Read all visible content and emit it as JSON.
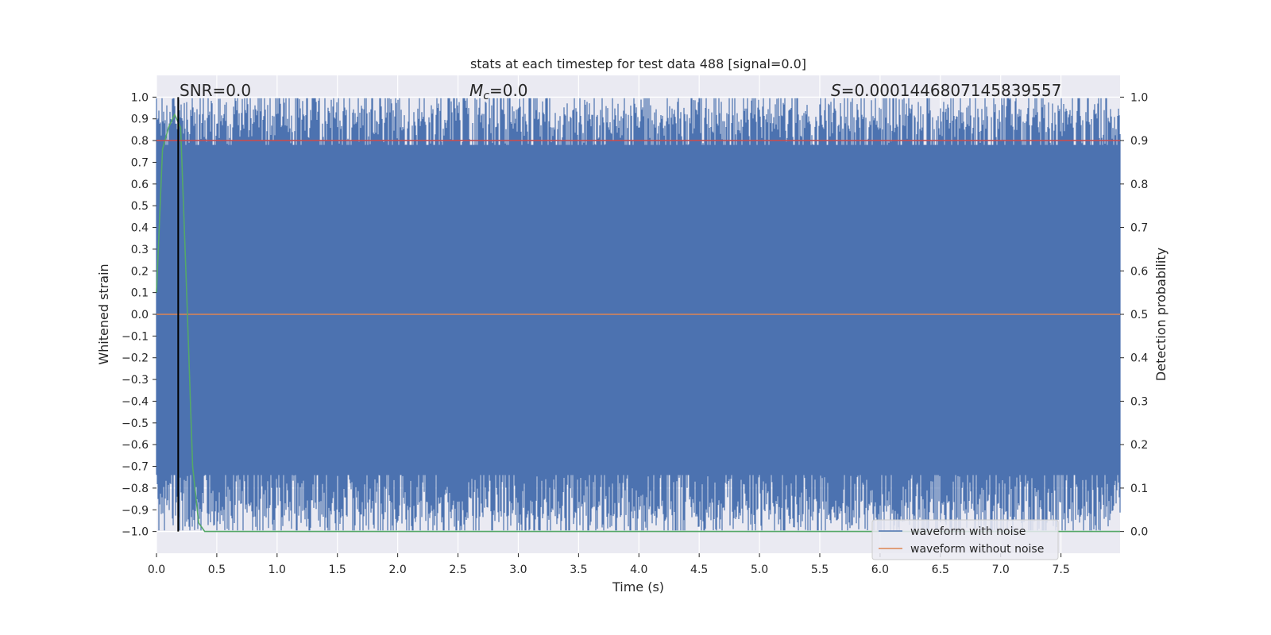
{
  "chart_data": {
    "type": "line",
    "title": "stats at each timestep for test data 488 [signal=0.0]",
    "xlabel": "Time (s)",
    "ylabel": "Whitened strain",
    "y2label": "Detection probability",
    "xlim": [
      0.0,
      7.99
    ],
    "ylim": [
      -1.1,
      1.1
    ],
    "y2lim": [
      -0.05,
      1.05
    ],
    "x_ticks": [
      0.0,
      0.5,
      1.0,
      1.5,
      2.0,
      2.5,
      3.0,
      3.5,
      4.0,
      4.5,
      5.0,
      5.5,
      6.0,
      6.5,
      7.0,
      7.5
    ],
    "x_tick_labels": [
      "0.0",
      "0.5",
      "1.0",
      "1.5",
      "2.0",
      "2.5",
      "3.0",
      "3.5",
      "4.0",
      "4.5",
      "5.0",
      "5.5",
      "6.0",
      "6.5",
      "7.0",
      "7.5"
    ],
    "y_ticks": [
      1.0,
      0.9,
      0.8,
      0.7,
      0.6,
      0.5,
      0.4,
      0.3,
      0.2,
      0.1,
      0.0,
      -0.1,
      -0.2,
      -0.3,
      -0.4,
      -0.5,
      -0.6,
      -0.7,
      -0.8,
      -0.9,
      -1.0
    ],
    "y_tick_labels": [
      "1.0",
      "0.9",
      "0.8",
      "0.7",
      "0.6",
      "0.5",
      "0.4",
      "0.3",
      "0.2",
      "0.1",
      "0.0",
      "−0.1",
      "−0.2",
      "−0.3",
      "−0.4",
      "−0.5",
      "−0.6",
      "−0.7",
      "−0.8",
      "−0.9",
      "−1.0"
    ],
    "y2_ticks": [
      1.0,
      0.9,
      0.8,
      0.7,
      0.6,
      0.5,
      0.4,
      0.3,
      0.2,
      0.1,
      0.0
    ],
    "y2_tick_labels": [
      "1.0",
      "0.9",
      "0.8",
      "0.7",
      "0.6",
      "0.5",
      "0.4",
      "0.3",
      "0.2",
      "0.1",
      "0.0"
    ],
    "grid": true,
    "legend_position": "bottom-right",
    "annotations": {
      "snr": "SNR=0.0",
      "mc_symbol": "M",
      "mc_sub": "c",
      "mc_value": "=0.0",
      "s_symbol": "S",
      "s_value": "=0.0001446807145839557"
    },
    "series": [
      {
        "name": "waveform with noise",
        "color": "#4c72b0",
        "axis": "left",
        "description_values": "dense noise between about -1.0 and 1.0 across 0.0–7.99 s",
        "envelope": {
          "x": [
            0.0,
            7.99
          ],
          "upper_typical": 0.95,
          "lower_typical": -0.95
        }
      },
      {
        "name": "waveform without noise",
        "color": "#dd8452",
        "axis": "left",
        "x": [
          0.0,
          7.99
        ],
        "y": [
          0.0,
          0.0
        ]
      },
      {
        "color": "#55a868",
        "axis": "right",
        "x": [
          0.0,
          0.05,
          0.1,
          0.15,
          0.2,
          0.25,
          0.3,
          0.35,
          0.4,
          1.0,
          2.0,
          3.0,
          4.0,
          5.0,
          6.0,
          7.0,
          7.99
        ],
        "y": [
          0.55,
          0.88,
          0.93,
          0.96,
          0.93,
          0.55,
          0.15,
          0.02,
          0.0,
          0.0,
          0.0,
          0.0,
          0.0,
          0.0,
          0.0,
          0.0,
          0.0
        ]
      },
      {
        "color": "#c44e52",
        "axis": "right",
        "x": [
          0.0,
          7.99
        ],
        "y": [
          0.9,
          0.9
        ]
      }
    ],
    "vertical_lines": [
      {
        "x": 0.18,
        "color": "#000000"
      }
    ]
  }
}
